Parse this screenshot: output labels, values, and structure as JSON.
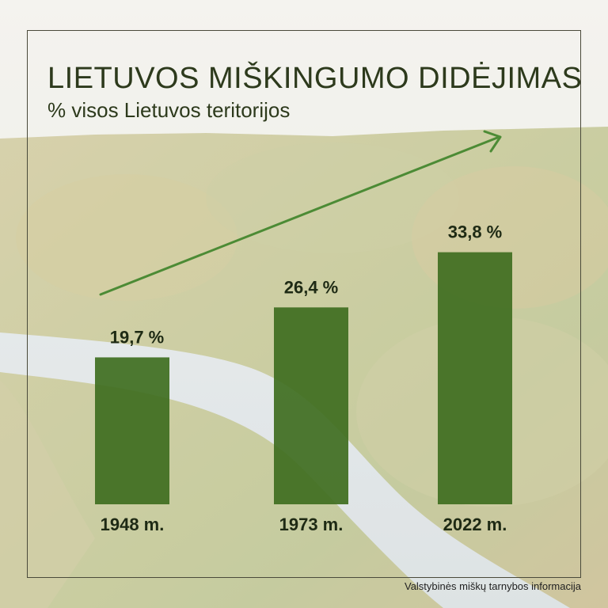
{
  "title": "LIETUVOS MIŠKINGUMO DIDĖJIMAS",
  "subtitle": "% visos Lietuvos teritorijos",
  "source": "Valstybinės miškų tarnybos informacija",
  "colors": {
    "bar": "#3f6e1f",
    "arrow": "#4c8b35",
    "text": "#2d3a1c"
  },
  "chart_data": {
    "type": "bar",
    "categories": [
      "1948 m.",
      "1973 m.",
      "2022 m."
    ],
    "values": [
      19.7,
      26.4,
      33.8
    ],
    "value_labels": [
      "19,7 %",
      "26,4 %",
      "33,8 %"
    ],
    "title": "LIETUVOS MIŠKINGUMO DIDĖJIMAS",
    "subtitle": "% visos Lietuvos teritorijos",
    "xlabel": "",
    "ylabel": "",
    "grid": false,
    "legend": "none"
  }
}
